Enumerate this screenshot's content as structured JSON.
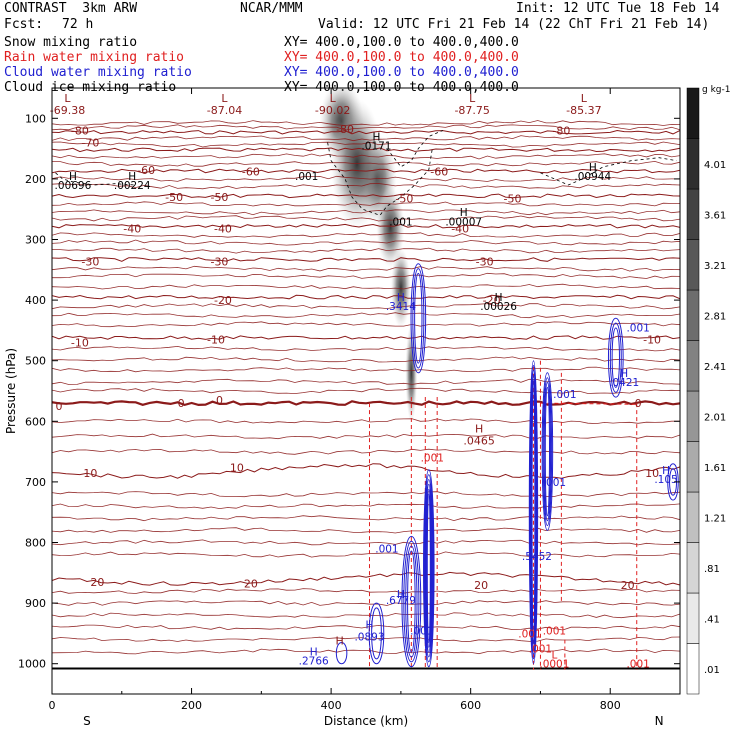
{
  "header": {
    "title_left": "CONTRAST  3km ARW",
    "title_center": "NCAR/MMM",
    "init": "Init: 12 UTC Tue 18 Feb 14",
    "fcst_label": "Fcst:",
    "fcst_value": "72 h",
    "valid": "Valid: 12 UTC Fri 21 Feb 14 (22 ChT Fri 21 Feb 14)",
    "fields": [
      {
        "name": "Snow mixing ratio",
        "xy": "XY= 400.0,100.0 to 400.0,400.0",
        "color": "#000000"
      },
      {
        "name": "Rain water mixing ratio",
        "xy": "XY= 400.0,100.0 to 400.0,400.0",
        "color": "#e02020"
      },
      {
        "name": "Cloud water mixing ratio",
        "xy": "XY= 400.0,100.0 to 400.0,400.0",
        "color": "#2020d0"
      },
      {
        "name": "Cloud ice mixing ratio",
        "xy": "XY= 400.0,100.0 to 400.0,400.0",
        "color": "#000000"
      }
    ]
  },
  "chart_data": {
    "type": "contour",
    "xlabel": "Distance (km)",
    "ylabel": "Pressure (hPa)",
    "xlim": [
      0,
      900
    ],
    "ylim": [
      1050,
      50
    ],
    "x_ticks": [
      0,
      200,
      400,
      600,
      800
    ],
    "y_ticks": [
      100,
      200,
      300,
      400,
      500,
      600,
      700,
      800,
      900,
      1000
    ],
    "south_label": "S",
    "north_label": "N",
    "colorbar": {
      "unit": "g kg-1",
      "labels": [
        ".01",
        ".41",
        ".81",
        "1.21",
        "1.61",
        "2.01",
        "2.41",
        "2.81",
        "3.21",
        "3.61",
        "4.01"
      ]
    },
    "temperature_contours": {
      "color": "#8b1a1a",
      "levels": [
        -80,
        -70,
        -60,
        -50,
        -40,
        -30,
        -20,
        -10,
        0,
        10,
        20
      ],
      "pressure_at_level": [
        123,
        152,
        187,
        228,
        278,
        333,
        395,
        462,
        570,
        682,
        860
      ],
      "labels": [
        {
          "x": 40,
          "p": 120,
          "text": "-80"
        },
        {
          "x": 420,
          "p": 118,
          "text": "-80"
        },
        {
          "x": 730,
          "p": 120,
          "text": "-80"
        },
        {
          "x": 55,
          "p": 140,
          "text": "-70"
        },
        {
          "x": 135,
          "p": 185,
          "text": "-60"
        },
        {
          "x": 285,
          "p": 188,
          "text": "-60"
        },
        {
          "x": 555,
          "p": 188,
          "text": "-60"
        },
        {
          "x": 175,
          "p": 230,
          "text": "-50"
        },
        {
          "x": 240,
          "p": 230,
          "text": "-50"
        },
        {
          "x": 505,
          "p": 232,
          "text": "-50"
        },
        {
          "x": 660,
          "p": 232,
          "text": "-50"
        },
        {
          "x": 115,
          "p": 282,
          "text": "-40"
        },
        {
          "x": 245,
          "p": 282,
          "text": "-40"
        },
        {
          "x": 585,
          "p": 282,
          "text": "-40"
        },
        {
          "x": 55,
          "p": 336,
          "text": "-30"
        },
        {
          "x": 240,
          "p": 336,
          "text": "-30"
        },
        {
          "x": 620,
          "p": 336,
          "text": "-30"
        },
        {
          "x": 245,
          "p": 400,
          "text": "-20"
        },
        {
          "x": 630,
          "p": 400,
          "text": "-20"
        },
        {
          "x": 40,
          "p": 470,
          "text": "-10"
        },
        {
          "x": 235,
          "p": 465,
          "text": "-10"
        },
        {
          "x": 860,
          "p": 465,
          "text": "-10"
        },
        {
          "x": 10,
          "p": 575,
          "text": "0"
        },
        {
          "x": 185,
          "p": 570,
          "text": "0"
        },
        {
          "x": 240,
          "p": 565,
          "text": "0"
        },
        {
          "x": 840,
          "p": 570,
          "text": "0"
        },
        {
          "x": 55,
          "p": 685,
          "text": "10"
        },
        {
          "x": 265,
          "p": 676,
          "text": "10"
        },
        {
          "x": 860,
          "p": 685,
          "text": "10"
        },
        {
          "x": 65,
          "p": 865,
          "text": "20"
        },
        {
          "x": 285,
          "p": 868,
          "text": "20"
        },
        {
          "x": 615,
          "p": 870,
          "text": "20"
        },
        {
          "x": 825,
          "p": 870,
          "text": "20"
        }
      ]
    },
    "extrema": [
      {
        "x": 5,
        "p": 80,
        "kind": "L",
        "value": "-69.38"
      },
      {
        "x": 230,
        "p": 80,
        "kind": "L",
        "value": "-87.04"
      },
      {
        "x": 385,
        "p": 80,
        "kind": "L",
        "value": "-90.02"
      },
      {
        "x": 585,
        "p": 80,
        "kind": "L",
        "value": "-87.75"
      },
      {
        "x": 745,
        "p": 80,
        "kind": "L",
        "value": "-85.37"
      },
      {
        "x": 595,
        "p": 625,
        "kind": "H",
        "value": ".0465"
      },
      {
        "x": 395,
        "p": 975,
        "kind": "H",
        "value": ""
      }
    ],
    "snow": {
      "peak_value": "4.01",
      "axis_x": [
        415,
        465,
        485,
        500,
        515
      ],
      "axis_p": [
        105,
        200,
        280,
        380,
        520
      ],
      "labels": [
        {
          "x": 465,
          "p": 130,
          "text": "H"
        },
        {
          "x": 465,
          "p": 145,
          "text": ".0171"
        },
        {
          "x": 365,
          "p": 195,
          "text": ".001"
        },
        {
          "x": 500,
          "p": 270,
          "text": ".001"
        },
        {
          "x": 30,
          "p": 195,
          "text": "H"
        },
        {
          "x": 30,
          "p": 210,
          "text": ".00696"
        },
        {
          "x": 115,
          "p": 195,
          "text": "H"
        },
        {
          "x": 115,
          "p": 210,
          "text": ".00224"
        },
        {
          "x": 590,
          "p": 255,
          "text": "H"
        },
        {
          "x": 590,
          "p": 270,
          "text": ".00007"
        },
        {
          "x": 775,
          "p": 180,
          "text": "H"
        },
        {
          "x": 775,
          "p": 195,
          "text": ".00944"
        },
        {
          "x": 640,
          "p": 395,
          "text": "H"
        },
        {
          "x": 640,
          "p": 410,
          "text": ".00026"
        }
      ]
    },
    "cloud_water": {
      "labels": [
        {
          "x": 500,
          "p": 395,
          "text": "H"
        },
        {
          "x": 500,
          "p": 410,
          "text": ".3414"
        },
        {
          "x": 840,
          "p": 445,
          "text": ".001"
        },
        {
          "x": 820,
          "p": 520,
          "text": "H"
        },
        {
          "x": 820,
          "p": 535,
          "text": ".0421"
        },
        {
          "x": 735,
          "p": 555,
          "text": ".001"
        },
        {
          "x": 720,
          "p": 700,
          "text": ".001"
        },
        {
          "x": 880,
          "p": 680,
          "text": "H"
        },
        {
          "x": 880,
          "p": 695,
          "text": ".105"
        },
        {
          "x": 480,
          "p": 810,
          "text": ".001"
        },
        {
          "x": 500,
          "p": 885,
          "text": "H"
        },
        {
          "x": 500,
          "p": 895,
          "text": ".6779"
        },
        {
          "x": 695,
          "p": 822,
          "text": ".5452"
        },
        {
          "x": 455,
          "p": 935,
          "text": "H"
        },
        {
          "x": 455,
          "p": 955,
          "text": ".0893"
        },
        {
          "x": 530,
          "p": 945,
          "text": ".001"
        },
        {
          "x": 375,
          "p": 980,
          "text": "H"
        },
        {
          "x": 375,
          "p": 995,
          "text": ".2766"
        }
      ]
    },
    "rain": {
      "labels": [
        {
          "x": 545,
          "p": 660,
          "text": ".001"
        },
        {
          "x": 685,
          "p": 950,
          "text": ".001"
        },
        {
          "x": 700,
          "p": 975,
          "text": ".001"
        },
        {
          "x": 720,
          "p": 945,
          "text": ".001"
        },
        {
          "x": 720,
          "p": 985,
          "text": "L"
        },
        {
          "x": 720,
          "p": 1000,
          "text": ".0001"
        },
        {
          "x": 840,
          "p": 1000,
          "text": ".001"
        }
      ]
    }
  }
}
